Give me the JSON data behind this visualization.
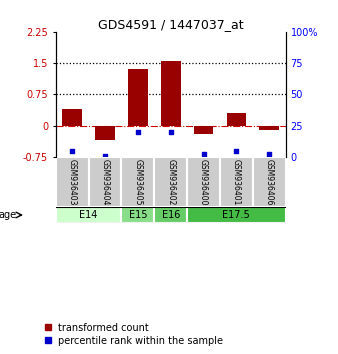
{
  "title": "GDS4591 / 1447037_at",
  "samples": [
    "GSM936403",
    "GSM936404",
    "GSM936405",
    "GSM936402",
    "GSM936400",
    "GSM936401",
    "GSM936406"
  ],
  "red_values": [
    0.4,
    -0.35,
    1.35,
    1.55,
    -0.2,
    0.3,
    -0.1
  ],
  "blue_values": [
    5,
    1,
    20,
    20,
    2,
    5,
    2
  ],
  "ylim_left": [
    -0.75,
    2.25
  ],
  "ylim_right": [
    0,
    100
  ],
  "yticks_left": [
    -0.75,
    0,
    0.75,
    1.5,
    2.25
  ],
  "yticks_right": [
    0,
    25,
    50,
    75,
    100
  ],
  "hlines": [
    0.75,
    1.5
  ],
  "zero_line": 0,
  "groups": [
    {
      "label": "E14",
      "samples": [
        0,
        1
      ],
      "color": "#ccffcc"
    },
    {
      "label": "E15",
      "samples": [
        2
      ],
      "color": "#88dd88"
    },
    {
      "label": "E16",
      "samples": [
        3
      ],
      "color": "#66cc66"
    },
    {
      "label": "E17.5",
      "samples": [
        4,
        5,
        6
      ],
      "color": "#44bb44"
    }
  ],
  "bar_color_red": "#990000",
  "bar_color_blue": "#0000cc",
  "sample_box_color": "#cccccc",
  "legend_red_label": "transformed count",
  "legend_blue_label": "percentile rank within the sample",
  "age_label": "age"
}
